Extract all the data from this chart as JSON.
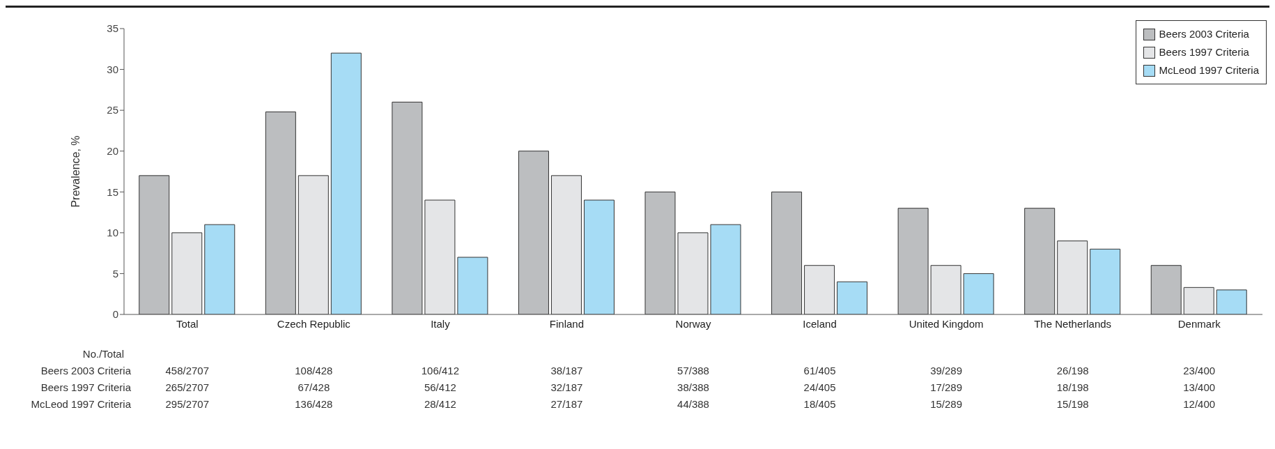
{
  "chart_data": {
    "type": "bar",
    "ylabel": "Prevalence, %",
    "categories": [
      "Total",
      "Czech Republic",
      "Italy",
      "Finland",
      "Norway",
      "Iceland",
      "United Kingdom",
      "The Netherlands",
      "Denmark"
    ],
    "series": [
      {
        "name": "Beers 2003 Criteria",
        "color": "#bcbec0",
        "values": [
          17,
          24.8,
          26,
          20,
          15,
          15,
          13,
          13,
          6
        ],
        "value_labels": [
          "458/2707",
          "108/428",
          "106/412",
          "38/187",
          "57/388",
          "61/405",
          "39/289",
          "26/198",
          "23/400"
        ]
      },
      {
        "name": "Beers 1997 Criteria",
        "color": "#e4e5e7",
        "values": [
          10,
          17,
          14,
          17,
          10,
          6,
          6,
          9,
          3.3
        ],
        "value_labels": [
          "265/2707",
          "67/428",
          "56/412",
          "32/187",
          "38/388",
          "24/405",
          "17/289",
          "18/198",
          "13/400"
        ]
      },
      {
        "name": "McLeod 1997 Criteria",
        "color": "#a6dcf5",
        "values": [
          11,
          32,
          7,
          14,
          11,
          4,
          5,
          8,
          3
        ],
        "value_labels": [
          "295/2707",
          "136/428",
          "28/412",
          "27/187",
          "44/388",
          "18/405",
          "15/289",
          "15/198",
          "12/400"
        ]
      }
    ],
    "ylim": [
      0,
      35
    ],
    "yticks": [
      0,
      5,
      10,
      15,
      20,
      25,
      30,
      35
    ],
    "grid": false,
    "legend": "top right",
    "annotations": [
      "No./Total"
    ]
  }
}
